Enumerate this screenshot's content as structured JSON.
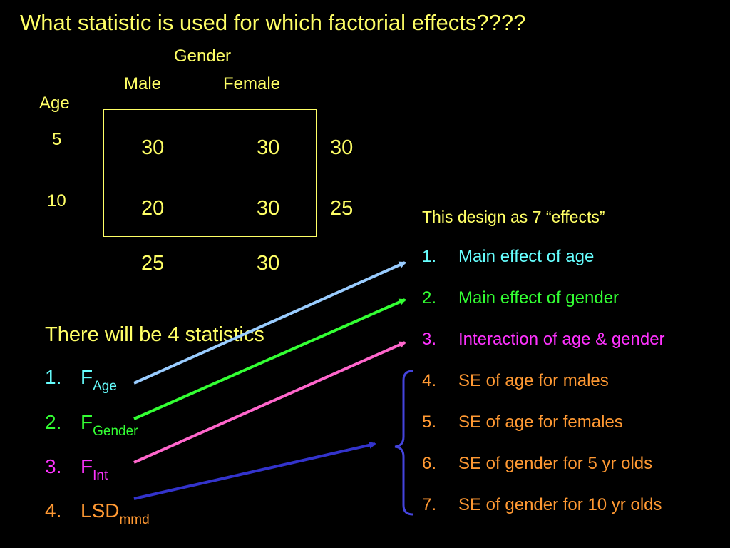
{
  "title": "What statistic is used for which factorial effects????",
  "table": {
    "col_factor_label": "Gender",
    "col_levels": [
      "Male",
      "Female"
    ],
    "row_factor_label": "Age",
    "row_levels": [
      "5",
      "10"
    ],
    "cells": [
      [
        "30",
        "30"
      ],
      [
        "20",
        "30"
      ]
    ],
    "row_means": [
      "30",
      "25"
    ],
    "col_means": [
      "25",
      "30"
    ]
  },
  "effects": {
    "heading": "This design as 7 “effects”",
    "items": [
      {
        "num": "1.",
        "text": "Main effect of age",
        "color": "#66ffff"
      },
      {
        "num": "2.",
        "text": "Main effect of gender",
        "color": "#33ff33"
      },
      {
        "num": "3.",
        "text": "Interaction of age & gender",
        "color": "#ff33ff"
      },
      {
        "num": "4.",
        "text": "SE of age for males",
        "color": "#ff9933"
      },
      {
        "num": "5.",
        "text": "SE of age for females",
        "color": "#ff9933"
      },
      {
        "num": "6.",
        "text": "SE of gender for 5 yr olds",
        "color": "#ff9933"
      },
      {
        "num": "7.",
        "text": "SE of gender for 10 yr olds",
        "color": "#ff9933"
      }
    ]
  },
  "statistics": {
    "heading": "There will be 4 statistics",
    "items": [
      {
        "num": "1.",
        "main": "F",
        "sub": "Age",
        "color": "#66ffff"
      },
      {
        "num": "2.",
        "main": "F",
        "sub": "Gender",
        "color": "#33ff33"
      },
      {
        "num": "3.",
        "main": "F",
        "sub": "Int",
        "color": "#ff33ff"
      },
      {
        "num": "4.",
        "main": "LSD",
        "sub": "mmd",
        "color": "#ff9933"
      }
    ]
  },
  "colors": {
    "background": "#000000",
    "text": "#ffff66",
    "arrow_age": "#99ccff",
    "arrow_gender": "#33ff33",
    "arrow_int": "#ff66cc",
    "arrow_lsd": "#3333cc",
    "brace": "#4444dd"
  }
}
